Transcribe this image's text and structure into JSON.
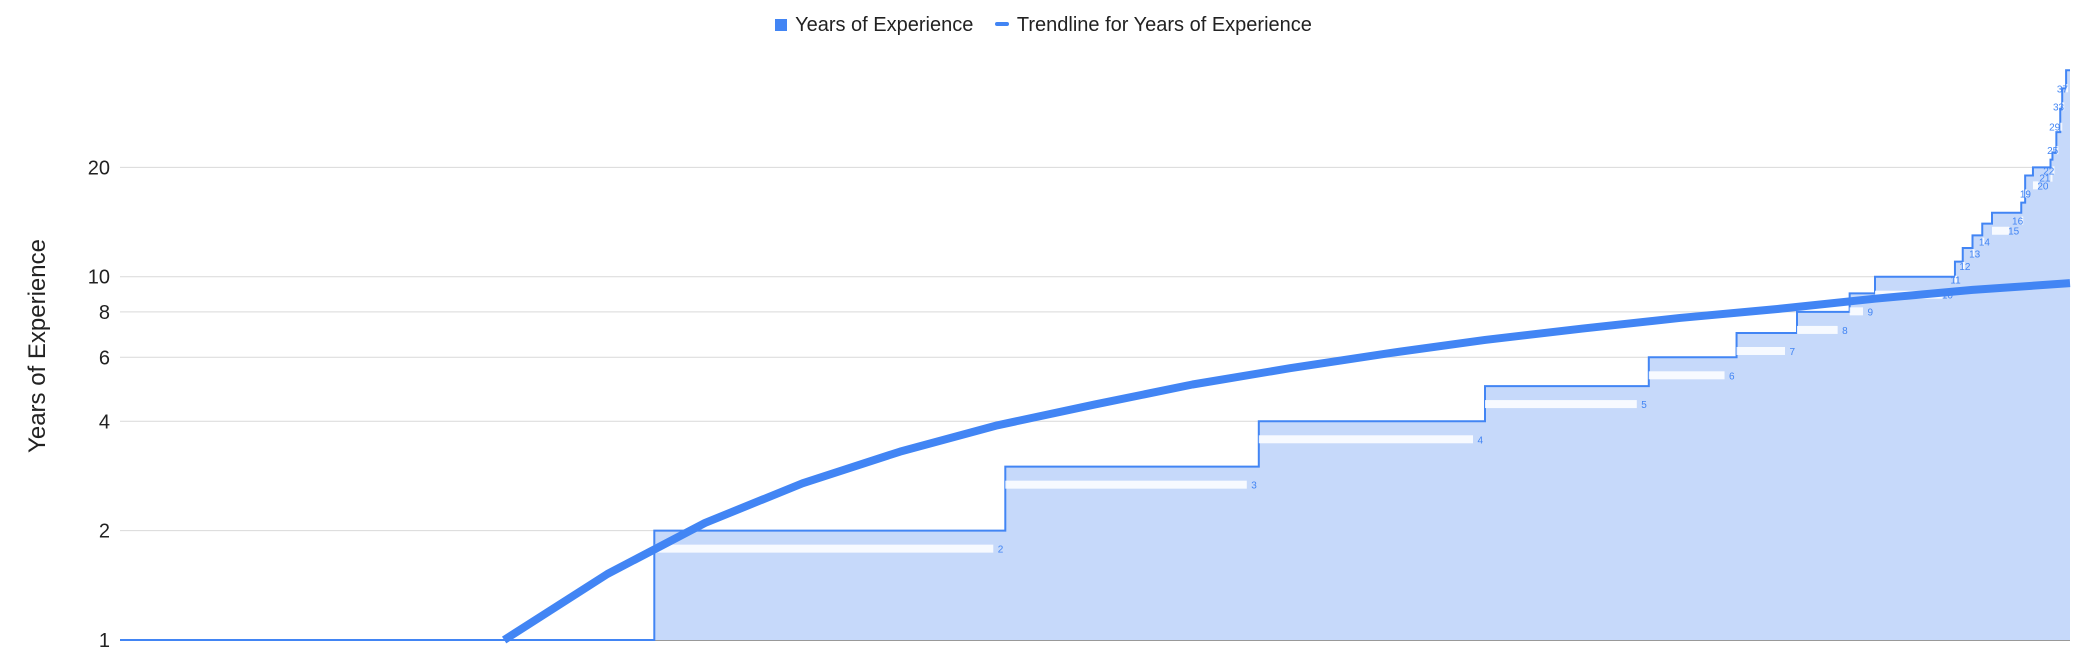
{
  "legend": {
    "series_label": "Years of Experience",
    "trend_label": "Trendline for Years of Experience"
  },
  "colors": {
    "series": "#4285f4",
    "area": "#c6d9fa",
    "trend": "#4285f4",
    "grid": "#d9d9d9",
    "text": "#222222"
  },
  "chart_data": {
    "type": "area",
    "title": "",
    "xlabel": "",
    "ylabel": "Years of Experience",
    "y_scale": "log",
    "ylim": [
      1,
      40
    ],
    "y_ticks": [
      1,
      2,
      4,
      6,
      8,
      10,
      20
    ],
    "grid": true,
    "legend_position": "top",
    "series": [
      {
        "name": "Years of Experience",
        "steps": [
          {
            "value": 1,
            "from": 0.0,
            "to": 0.274
          },
          {
            "value": 2,
            "from": 0.274,
            "to": 0.454
          },
          {
            "value": 3,
            "from": 0.454,
            "to": 0.584
          },
          {
            "value": 4,
            "from": 0.584,
            "to": 0.7
          },
          {
            "value": 5,
            "from": 0.7,
            "to": 0.784
          },
          {
            "value": 6,
            "from": 0.784,
            "to": 0.829
          },
          {
            "value": 7,
            "from": 0.829,
            "to": 0.86
          },
          {
            "value": 8,
            "from": 0.86,
            "to": 0.887
          },
          {
            "value": 9,
            "from": 0.887,
            "to": 0.9
          },
          {
            "value": 10,
            "from": 0.9,
            "to": 0.941
          },
          {
            "value": 11,
            "from": 0.941,
            "to": 0.945
          },
          {
            "value": 12,
            "from": 0.945,
            "to": 0.95
          },
          {
            "value": 13,
            "from": 0.95,
            "to": 0.955
          },
          {
            "value": 14,
            "from": 0.955,
            "to": 0.96
          },
          {
            "value": 15,
            "from": 0.96,
            "to": 0.975
          },
          {
            "value": 16,
            "from": 0.975,
            "to": 0.977
          },
          {
            "value": 19,
            "from": 0.977,
            "to": 0.981
          },
          {
            "value": 20,
            "from": 0.981,
            "to": 0.99
          },
          {
            "value": 21,
            "from": 0.99,
            "to": 0.991
          },
          {
            "value": 22,
            "from": 0.991,
            "to": 0.993
          },
          {
            "value": 25,
            "from": 0.993,
            "to": 0.995
          },
          {
            "value": 29,
            "from": 0.995,
            "to": 0.996
          },
          {
            "value": 33,
            "from": 0.996,
            "to": 0.998
          },
          {
            "value": 37,
            "from": 0.998,
            "to": 1.0
          }
        ]
      },
      {
        "name": "Trendline for Years of Experience",
        "type": "trendline",
        "points": [
          [
            0.197,
            1.0
          ],
          [
            0.25,
            1.52
          ],
          [
            0.3,
            2.1
          ],
          [
            0.35,
            2.7
          ],
          [
            0.4,
            3.3
          ],
          [
            0.45,
            3.9
          ],
          [
            0.5,
            4.45
          ],
          [
            0.55,
            5.05
          ],
          [
            0.6,
            5.6
          ],
          [
            0.65,
            6.15
          ],
          [
            0.7,
            6.7
          ],
          [
            0.75,
            7.2
          ],
          [
            0.8,
            7.7
          ],
          [
            0.85,
            8.15
          ],
          [
            0.9,
            8.7
          ],
          [
            0.95,
            9.2
          ],
          [
            1.0,
            9.6
          ]
        ]
      }
    ]
  }
}
